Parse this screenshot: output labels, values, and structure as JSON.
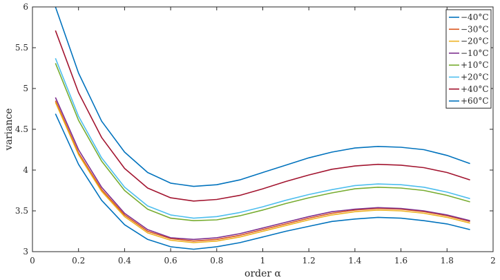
{
  "chart_data": {
    "type": "line",
    "xlabel": "order α",
    "ylabel": "variance",
    "xlim": [
      0,
      2
    ],
    "ylim": [
      3,
      6
    ],
    "x_ticks": [
      0,
      0.2,
      0.4,
      0.6,
      0.8,
      1,
      1.2,
      1.4,
      1.6,
      1.8,
      2
    ],
    "x_tick_labels": [
      "0",
      "0.2",
      "0.4",
      "0.6",
      "0.8",
      "1",
      "1.2",
      "1.4",
      "1.6",
      "1.8",
      "2"
    ],
    "y_ticks": [
      3,
      3.5,
      4,
      4.5,
      5,
      5.5,
      6
    ],
    "y_tick_labels": [
      "3",
      "3.5",
      "4",
      "4.5",
      "5",
      "5.5",
      "6"
    ],
    "grid": false,
    "legend_position": "top-right",
    "x": [
      0.1,
      0.2,
      0.3,
      0.4,
      0.5,
      0.6,
      0.7,
      0.8,
      0.9,
      1.0,
      1.1,
      1.2,
      1.3,
      1.4,
      1.5,
      1.6,
      1.7,
      1.8,
      1.9
    ],
    "series": [
      {
        "name": "−40°C",
        "color": "#0072BD",
        "values": [
          4.69,
          4.07,
          3.63,
          3.33,
          3.15,
          3.06,
          3.03,
          3.06,
          3.11,
          3.18,
          3.25,
          3.31,
          3.37,
          3.4,
          3.42,
          3.41,
          3.38,
          3.34,
          3.27
        ]
      },
      {
        "name": "−30°C",
        "color": "#D95319",
        "values": [
          4.85,
          4.21,
          3.76,
          3.45,
          3.25,
          3.16,
          3.13,
          3.15,
          3.2,
          3.27,
          3.34,
          3.41,
          3.47,
          3.51,
          3.53,
          3.52,
          3.49,
          3.44,
          3.37
        ]
      },
      {
        "name": "−20°C",
        "color": "#EDB120",
        "values": [
          4.83,
          4.19,
          3.74,
          3.43,
          3.23,
          3.14,
          3.11,
          3.13,
          3.18,
          3.25,
          3.32,
          3.39,
          3.45,
          3.49,
          3.51,
          3.5,
          3.47,
          3.42,
          3.35
        ]
      },
      {
        "name": "−10°C",
        "color": "#7E2F8E",
        "values": [
          4.89,
          4.25,
          3.79,
          3.47,
          3.27,
          3.17,
          3.15,
          3.17,
          3.22,
          3.29,
          3.36,
          3.43,
          3.49,
          3.52,
          3.54,
          3.53,
          3.5,
          3.45,
          3.38
        ]
      },
      {
        "name": "+10°C",
        "color": "#77AC30",
        "values": [
          5.31,
          4.61,
          4.11,
          3.75,
          3.52,
          3.41,
          3.38,
          3.39,
          3.44,
          3.51,
          3.59,
          3.66,
          3.72,
          3.77,
          3.79,
          3.78,
          3.75,
          3.69,
          3.61
        ]
      },
      {
        "name": "+20°C",
        "color": "#4DBEEE",
        "values": [
          5.37,
          4.66,
          4.15,
          3.79,
          3.56,
          3.45,
          3.41,
          3.43,
          3.48,
          3.55,
          3.63,
          3.7,
          3.76,
          3.81,
          3.83,
          3.82,
          3.79,
          3.73,
          3.65
        ]
      },
      {
        "name": "+40°C",
        "color": "#A2142F",
        "values": [
          5.71,
          4.95,
          4.4,
          4.02,
          3.78,
          3.66,
          3.62,
          3.64,
          3.69,
          3.77,
          3.86,
          3.94,
          4.01,
          4.05,
          4.07,
          4.06,
          4.03,
          3.97,
          3.88
        ]
      },
      {
        "name": "+60°C",
        "color": "#0072BD",
        "values": [
          6.0,
          5.19,
          4.6,
          4.22,
          3.97,
          3.84,
          3.8,
          3.82,
          3.88,
          3.97,
          4.06,
          4.15,
          4.22,
          4.27,
          4.29,
          4.28,
          4.25,
          4.18,
          4.08
        ]
      }
    ]
  }
}
